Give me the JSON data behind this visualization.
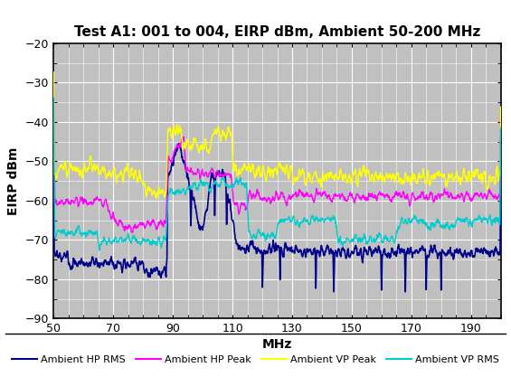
{
  "title": "Test A1: 001 to 004, EIRP dBm, Ambient 50-200 MHz",
  "xlabel": "MHz",
  "ylabel": "EIRP dBm",
  "xlim": [
    50,
    200
  ],
  "ylim": [
    -90,
    -20
  ],
  "yticks": [
    -90,
    -80,
    -70,
    -60,
    -50,
    -40,
    -30,
    -20
  ],
  "xticks": [
    50,
    70,
    90,
    110,
    130,
    150,
    170,
    190
  ],
  "background_color": "#C0C0C0",
  "figure_background": "#FFFFFF",
  "grid_color": "#FFFFFF",
  "series": {
    "Ambient HP RMS": {
      "color": "#00008B",
      "lw": 1.2
    },
    "Ambient HP Peak": {
      "color": "#FF00FF",
      "lw": 1.0
    },
    "Ambient VP Peak": {
      "color": "#FFFF00",
      "lw": 1.0
    },
    "Ambient VP RMS": {
      "color": "#00CCCC",
      "lw": 1.0
    }
  },
  "legend_order": [
    "Ambient HP RMS",
    "Ambient HP Peak",
    "Ambient VP Peak",
    "Ambient VP RMS"
  ]
}
